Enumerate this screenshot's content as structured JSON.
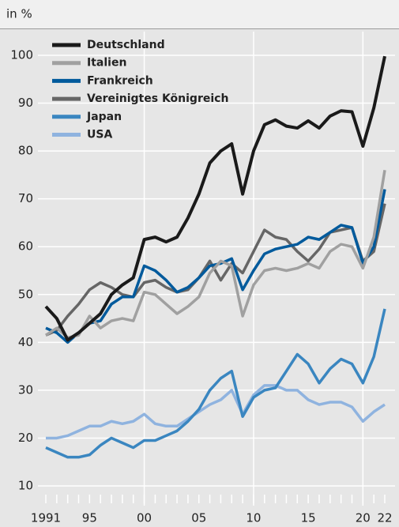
{
  "chart_data": {
    "type": "line",
    "subtitle": "in %",
    "x": [
      1991,
      1992,
      1993,
      1994,
      1995,
      1996,
      1997,
      1998,
      1999,
      2000,
      2001,
      2002,
      2003,
      2004,
      2005,
      2006,
      2007,
      2008,
      2009,
      2010,
      2011,
      2012,
      2013,
      2014,
      2015,
      2016,
      2017,
      2018,
      2019,
      2020,
      2021,
      2022
    ],
    "xlim": [
      1991,
      2022
    ],
    "xticks": [
      {
        "value": 1991,
        "label": "1991"
      },
      {
        "value": 1995,
        "label": "95"
      },
      {
        "value": 2000,
        "label": "00"
      },
      {
        "value": 2005,
        "label": "05"
      },
      {
        "value": 2010,
        "label": "10"
      },
      {
        "value": 2015,
        "label": "15"
      },
      {
        "value": 2020,
        "label": "20"
      },
      {
        "value": 2022,
        "label": "22"
      }
    ],
    "ylim": [
      10,
      100
    ],
    "yticks": [
      10,
      20,
      30,
      40,
      50,
      60,
      70,
      80,
      90,
      100
    ],
    "grid": true,
    "legend": "upper left",
    "series": [
      {
        "name": "Deutschland",
        "color": "#1a1a1a",
        "values": [
          47.5,
          45,
          40.5,
          42,
          44,
          46,
          50,
          52,
          53.5,
          61.5,
          62,
          61,
          62,
          66,
          71,
          77.5,
          80,
          81.5,
          71,
          80,
          85.5,
          86.5,
          85.2,
          84.8,
          86.3,
          84.8,
          87.3,
          88.4,
          88.2,
          81,
          89,
          99.8
        ]
      },
      {
        "name": "Italien",
        "color": "#a0a0a0",
        "values": [
          41.5,
          43,
          41,
          41.5,
          45.5,
          43,
          44.5,
          45,
          44.5,
          50.5,
          50,
          48,
          46,
          47.5,
          49.5,
          54.5,
          57,
          56,
          45.5,
          52,
          55,
          55.5,
          55,
          55.5,
          56.5,
          55.5,
          59,
          60.5,
          60,
          55.5,
          62,
          76
        ]
      },
      {
        "name": "Frankreich",
        "color": "#005a9c",
        "values": [
          43,
          42,
          40,
          42,
          44,
          44.5,
          48,
          49.5,
          49.5,
          56,
          55,
          53,
          50.5,
          51.5,
          53.5,
          56,
          56.5,
          57.5,
          51,
          55,
          58.5,
          59.5,
          60,
          60.5,
          62,
          61.5,
          63,
          64.5,
          64,
          56.5,
          60,
          72
        ]
      },
      {
        "name": "Vereinigtes Königreich",
        "color": "#666666",
        "values": [
          41.5,
          42.5,
          45.5,
          48,
          51,
          52.5,
          51.5,
          50,
          49.5,
          52.5,
          53,
          51.5,
          50.5,
          51,
          53.5,
          57,
          53,
          56.5,
          54.5,
          59,
          63.5,
          62,
          61.5,
          59,
          57,
          59.5,
          63,
          63.5,
          64,
          57,
          59,
          69
        ]
      },
      {
        "name": "Japan",
        "color": "#3a86c0",
        "values": [
          18,
          17,
          16,
          16,
          16.5,
          18.5,
          20,
          19,
          18,
          19.5,
          19.5,
          20.5,
          21.5,
          23.5,
          26,
          30,
          32.5,
          34,
          24.5,
          28.5,
          30,
          30.5,
          34,
          37.5,
          35.5,
          31.5,
          34.5,
          36.5,
          35.5,
          31.5,
          37,
          47
        ]
      },
      {
        "name": "USA",
        "color": "#8fb3df",
        "values": [
          20,
          20,
          20.5,
          21.5,
          22.5,
          22.5,
          23.5,
          23,
          23.5,
          25,
          23,
          22.5,
          22.5,
          24,
          25.5,
          27,
          28,
          30,
          25,
          29,
          31,
          31,
          30,
          30,
          28,
          27,
          27.5,
          27.5,
          26.5,
          23.5,
          25.5,
          27
        ]
      }
    ]
  }
}
